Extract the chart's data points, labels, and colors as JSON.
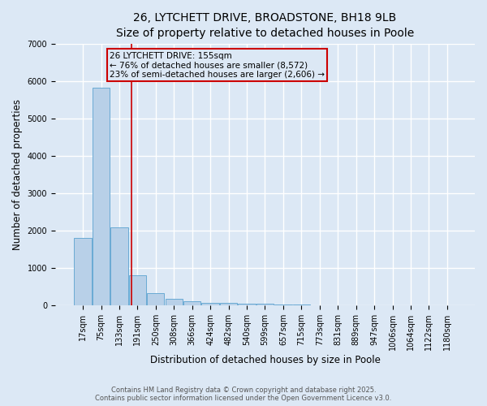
{
  "title_line1": "26, LYTCHETT DRIVE, BROADSTONE, BH18 9LB",
  "title_line2": "Size of property relative to detached houses in Poole",
  "xlabel": "Distribution of detached houses by size in Poole",
  "ylabel": "Number of detached properties",
  "categories": [
    "17sqm",
    "75sqm",
    "133sqm",
    "191sqm",
    "250sqm",
    "308sqm",
    "366sqm",
    "424sqm",
    "482sqm",
    "540sqm",
    "599sqm",
    "657sqm",
    "715sqm",
    "773sqm",
    "831sqm",
    "889sqm",
    "947sqm",
    "1006sqm",
    "1064sqm",
    "1122sqm",
    "1180sqm"
  ],
  "values": [
    1800,
    5820,
    2100,
    810,
    325,
    185,
    115,
    80,
    62,
    48,
    38,
    28,
    20,
    10,
    6,
    4,
    3,
    2,
    1,
    1,
    0
  ],
  "bar_color": "#b8d0e8",
  "bar_edge_color": "#6aaad4",
  "background_color": "#dce8f5",
  "grid_color": "#ffffff",
  "red_line_x": 2.67,
  "annotation_text": "26 LYTCHETT DRIVE: 155sqm\n← 76% of detached houses are smaller (8,572)\n23% of semi-detached houses are larger (2,606) →",
  "annotation_box_color": "#cc0000",
  "ylim": [
    0,
    7000
  ],
  "yticks": [
    0,
    1000,
    2000,
    3000,
    4000,
    5000,
    6000,
    7000
  ],
  "footer_line1": "Contains HM Land Registry data © Crown copyright and database right 2025.",
  "footer_line2": "Contains public sector information licensed under the Open Government Licence v3.0.",
  "title_fontsize": 10,
  "subtitle_fontsize": 9,
  "tick_fontsize": 7,
  "label_fontsize": 8.5,
  "annot_fontsize": 7.5,
  "footer_fontsize": 6
}
